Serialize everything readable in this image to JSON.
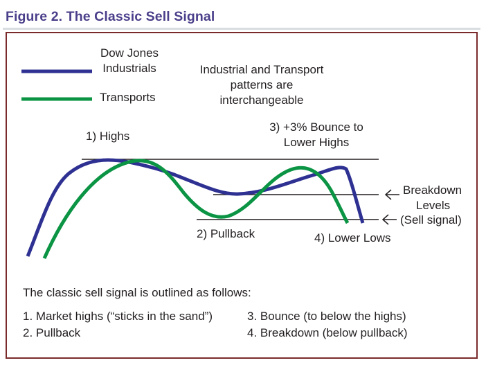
{
  "figure": {
    "title": "Figure 2. The Classic Sell Signal"
  },
  "legend": {
    "dow_label_line1": "Dow Jones",
    "dow_label_line2": "Industrials",
    "transports_label": "Transports",
    "dow_color": "#2e3192",
    "transports_color": "#0b9444"
  },
  "annotations": {
    "note_line1": "Industrial and Transport",
    "note_line2": "patterns are",
    "note_line3": "interchangeable",
    "highs": "1) Highs",
    "pullback": "2) Pullback",
    "bounce_line1": "3) +3% Bounce to",
    "bounce_line2": "Lower Highs",
    "lower_lows": "4) Lower Lows",
    "breakdown_line1": "Breakdown",
    "breakdown_line2": "Levels",
    "breakdown_line3": "(Sell signal)"
  },
  "description": {
    "intro": "The classic sell signal is outlined as follows:",
    "steps": [
      "1. Market highs (“sticks in the sand”)",
      "2. Pullback",
      "3. Bounce (to below the highs)",
      "4. Breakdown (below pullback)"
    ]
  },
  "colors": {
    "title": "#4a3f8a",
    "frame": "#7b2a2b"
  }
}
